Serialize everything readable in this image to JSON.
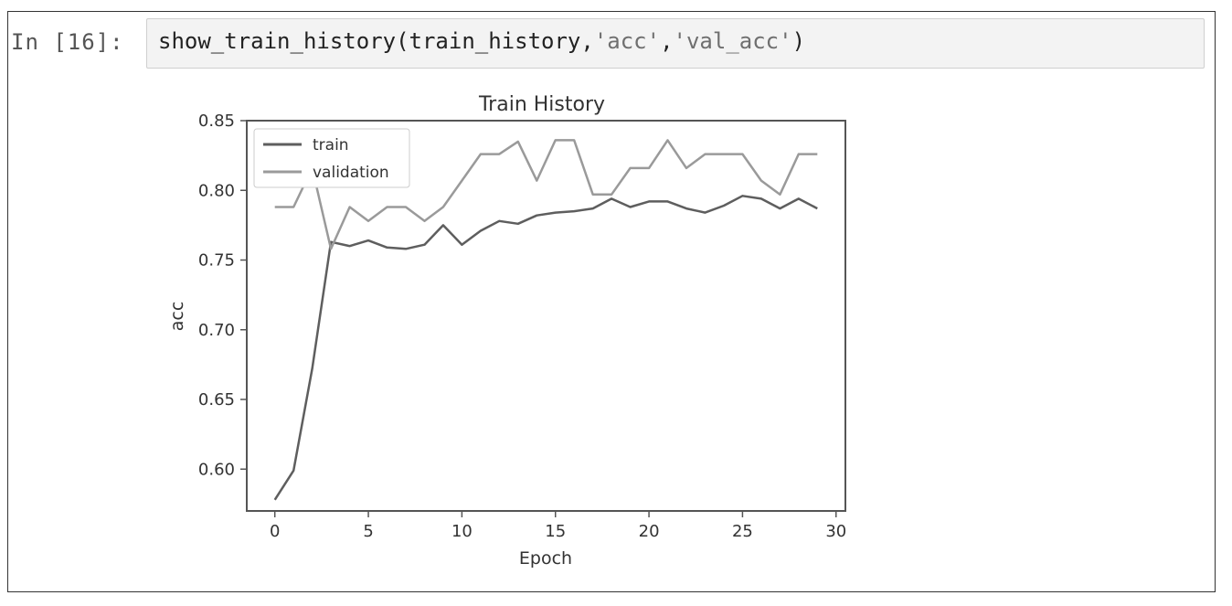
{
  "cell": {
    "prompt": "In [16]:",
    "code": {
      "func": "show_train_history(train_history,",
      "arg1": "'acc'",
      "comma": ",",
      "arg2": "'val_acc'",
      "close": ")"
    }
  },
  "colors": {
    "train": "#5e5e5e",
    "validation": "#9a9a9a",
    "axis": "#555555"
  },
  "chart_data": {
    "type": "line",
    "title": "Train History",
    "xlabel": "Epoch",
    "ylabel": "acc",
    "xlim": [
      -1.5,
      30.5
    ],
    "ylim": [
      0.57,
      0.85
    ],
    "xticks": [
      0,
      5,
      10,
      15,
      20,
      25,
      30
    ],
    "yticks": [
      0.6,
      0.65,
      0.7,
      0.75,
      0.8,
      0.85
    ],
    "ytick_labels": [
      "0.60",
      "0.65",
      "0.70",
      "0.75",
      "0.80",
      "0.85"
    ],
    "legend_position": "top-left",
    "x": [
      0,
      1,
      2,
      3,
      4,
      5,
      6,
      7,
      8,
      9,
      10,
      11,
      12,
      13,
      14,
      15,
      16,
      17,
      18,
      19,
      20,
      21,
      22,
      23,
      24,
      25,
      26,
      27,
      28,
      29
    ],
    "series": [
      {
        "name": "train",
        "values": [
          0.578,
          0.599,
          0.672,
          0.763,
          0.76,
          0.764,
          0.759,
          0.758,
          0.761,
          0.775,
          0.761,
          0.771,
          0.778,
          0.776,
          0.782,
          0.784,
          0.785,
          0.787,
          0.794,
          0.788,
          0.792,
          0.792,
          0.787,
          0.784,
          0.789,
          0.796,
          0.794,
          0.787,
          0.794,
          0.787
        ]
      },
      {
        "name": "validation",
        "values": [
          0.788,
          0.788,
          0.816,
          0.758,
          0.788,
          0.778,
          0.788,
          0.788,
          0.778,
          0.788,
          0.807,
          0.826,
          0.826,
          0.835,
          0.807,
          0.836,
          0.836,
          0.797,
          0.797,
          0.816,
          0.816,
          0.836,
          0.816,
          0.826,
          0.826,
          0.826,
          0.807,
          0.797,
          0.826,
          0.826
        ]
      }
    ]
  }
}
